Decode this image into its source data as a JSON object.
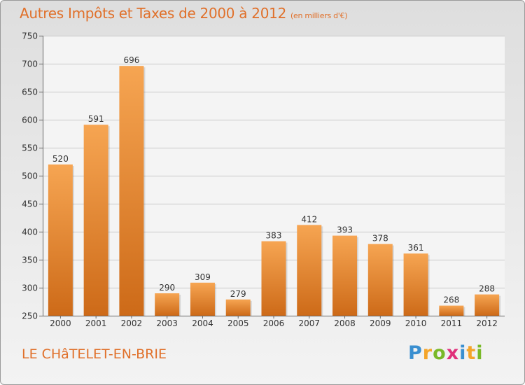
{
  "header": {
    "title": "Autres Impôts et Taxes de 2000 à 2012",
    "unit": "(en milliers d'€)"
  },
  "footer": {
    "commune": "LE CHâTELET-EN-BRIE",
    "logo": "Proxiti"
  },
  "colors": {
    "bar_top": "#f6a552",
    "bar_bottom": "#cd6a18",
    "title": "#e0702a",
    "grid": "#c8c8c8"
  },
  "chart_data": {
    "type": "bar",
    "title": "Autres Impôts et Taxes de 2000 à 2012",
    "subtitle": "(en milliers d'€)",
    "categories": [
      "2000",
      "2001",
      "2002",
      "2003",
      "2004",
      "2005",
      "2006",
      "2007",
      "2008",
      "2009",
      "2010",
      "2011",
      "2012"
    ],
    "values": [
      520,
      591,
      696,
      290,
      309,
      279,
      383,
      412,
      393,
      378,
      361,
      268,
      288
    ],
    "ylim": [
      250,
      750
    ],
    "yticks": [
      250,
      300,
      350,
      400,
      450,
      500,
      550,
      600,
      650,
      700,
      750
    ],
    "grid": true,
    "legend": "none"
  }
}
